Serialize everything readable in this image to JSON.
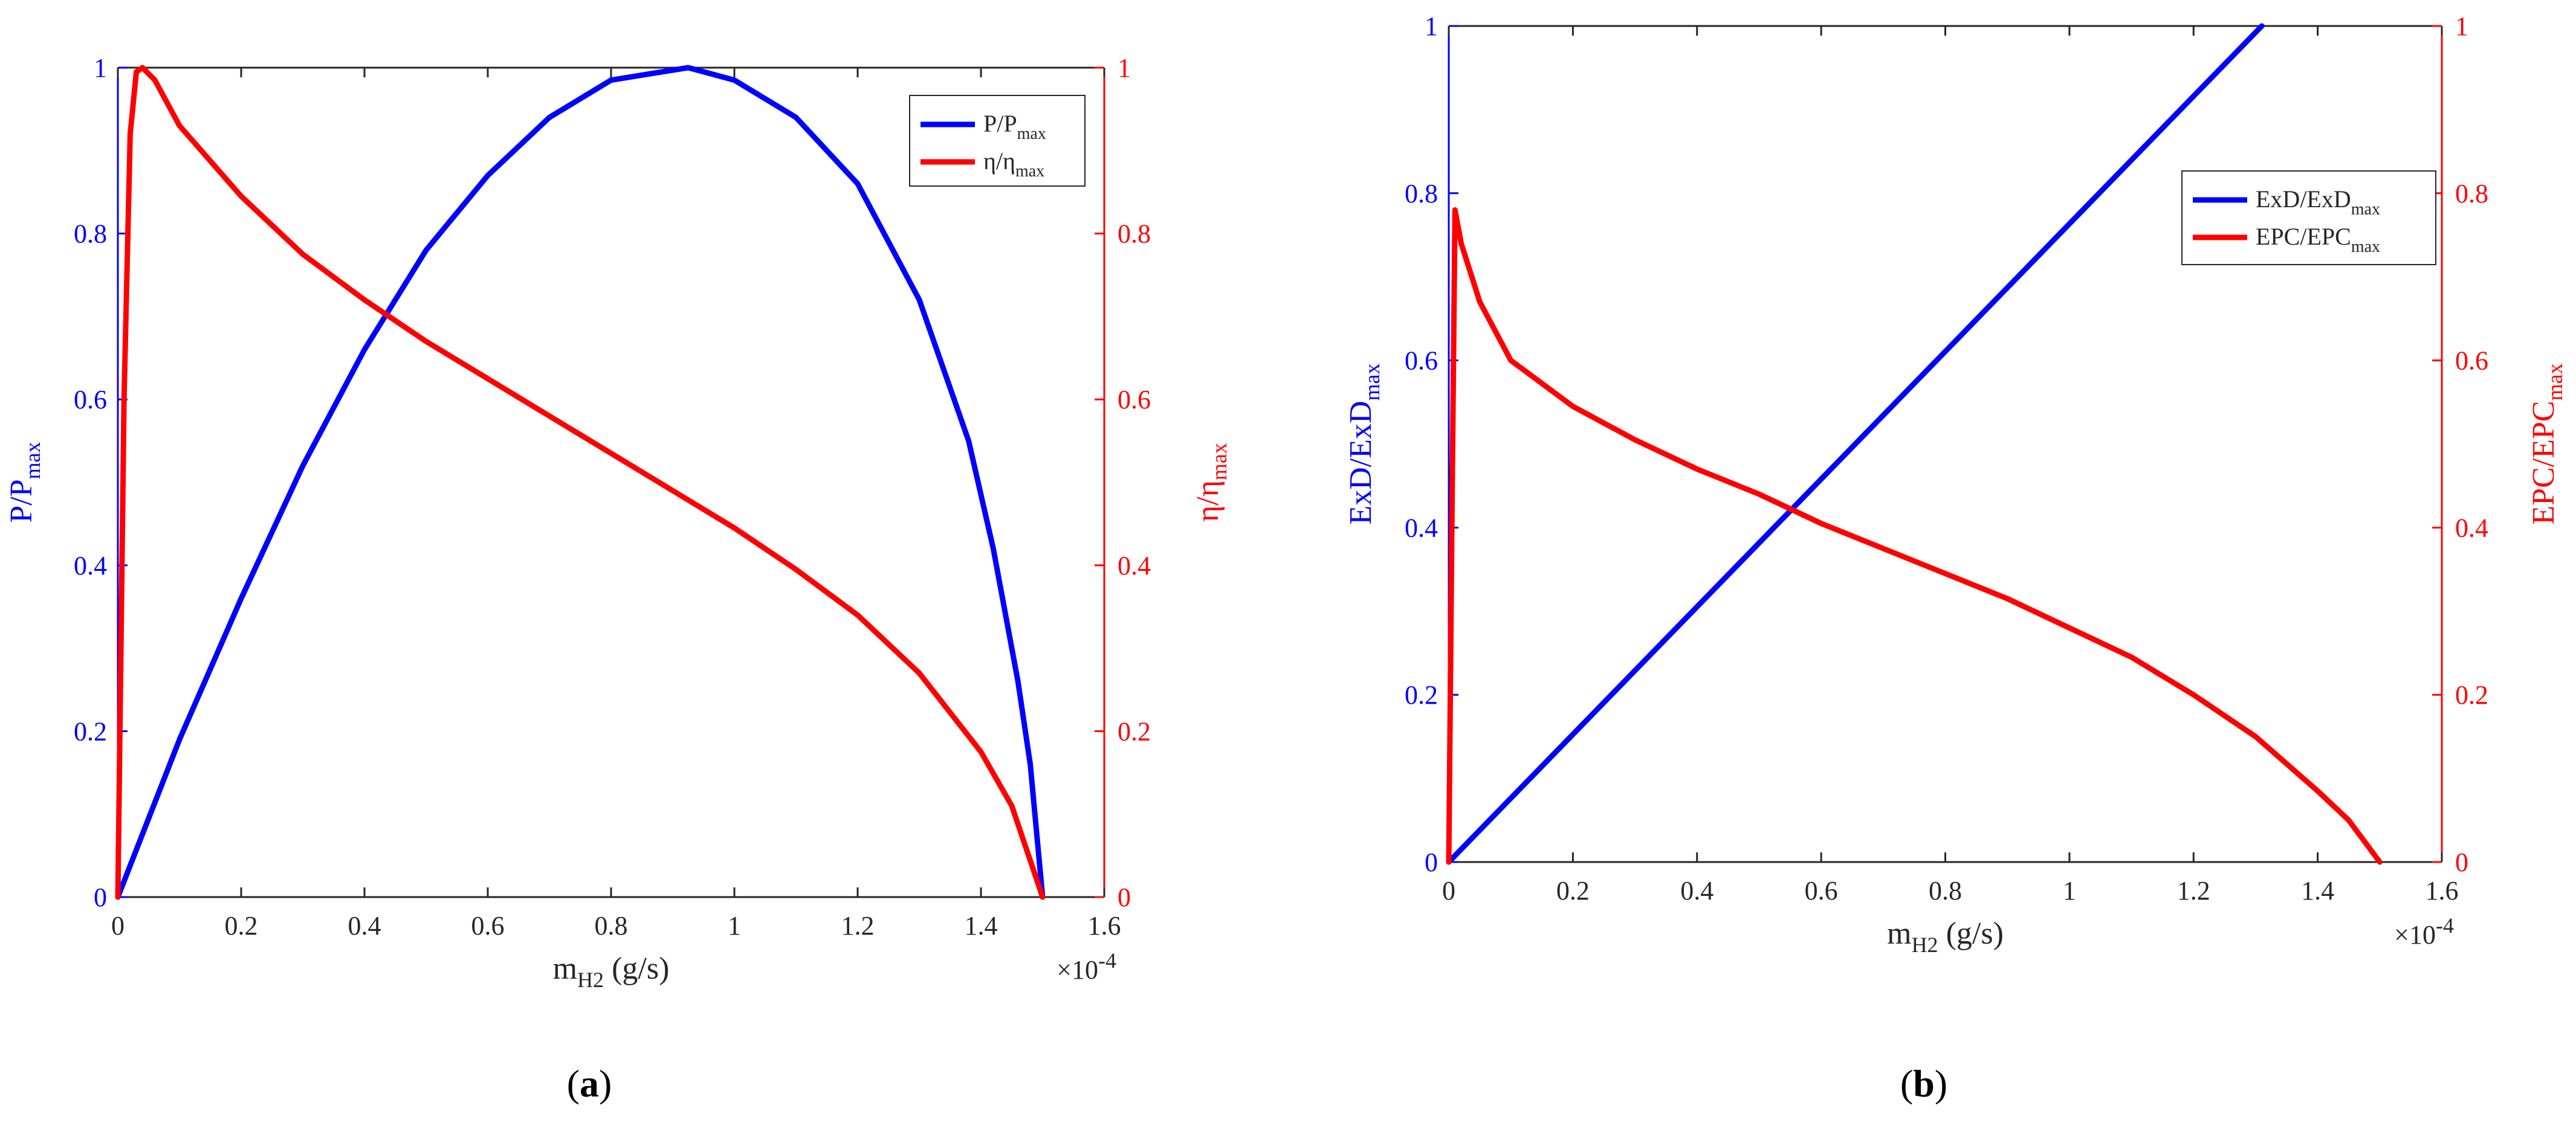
{
  "colors": {
    "blue": "#0000ff",
    "red": "#ff0000",
    "axis": "#262626",
    "background": "#ffffff"
  },
  "chart_data": [
    {
      "panel_label": "a",
      "type": "line",
      "xlabel": {
        "base": "m",
        "sub": "H2",
        "tail": " (g/s)"
      },
      "x_exponent": {
        "prefix": "×10",
        "power": "-4"
      },
      "xlim": [
        0,
        1.6
      ],
      "x_ticks": [
        "0",
        "0.2",
        "0.4",
        "0.6",
        "0.8",
        "1",
        "1.2",
        "1.4",
        "1.6"
      ],
      "ylabel_left": {
        "base": "P/P",
        "sub": "max"
      },
      "ylabel_right": {
        "base": "η/η",
        "sub": "max"
      },
      "ylim_left": [
        0,
        1
      ],
      "ylim_right": [
        0,
        1
      ],
      "y_ticks_left": [
        "0",
        "0.2",
        "0.4",
        "0.6",
        "0.8",
        "1"
      ],
      "y_ticks_right": [
        "0",
        "0.2",
        "0.4",
        "0.6",
        "0.8",
        "1"
      ],
      "legend_position": "top-right",
      "series": [
        {
          "name": "P/P",
          "name_sub": "max",
          "axis": "left",
          "color": "#0000ff",
          "points": [
            [
              0,
              0
            ],
            [
              0.1,
              0.19
            ],
            [
              0.2,
              0.36
            ],
            [
              0.3,
              0.52
            ],
            [
              0.4,
              0.66
            ],
            [
              0.5,
              0.78
            ],
            [
              0.6,
              0.87
            ],
            [
              0.7,
              0.94
            ],
            [
              0.8,
              0.985
            ],
            [
              0.925,
              1.0
            ],
            [
              1.0,
              0.985
            ],
            [
              1.1,
              0.94
            ],
            [
              1.2,
              0.86
            ],
            [
              1.3,
              0.72
            ],
            [
              1.38,
              0.55
            ],
            [
              1.42,
              0.42
            ],
            [
              1.46,
              0.26
            ],
            [
              1.48,
              0.16
            ],
            [
              1.5,
              0
            ]
          ]
        },
        {
          "name": "η/η",
          "name_sub": "max",
          "axis": "right",
          "color": "#ff0000",
          "points": [
            [
              0,
              0
            ],
            [
              0.01,
              0.6
            ],
            [
              0.02,
              0.92
            ],
            [
              0.03,
              0.995
            ],
            [
              0.04,
              1.0
            ],
            [
              0.06,
              0.985
            ],
            [
              0.1,
              0.93
            ],
            [
              0.2,
              0.845
            ],
            [
              0.3,
              0.775
            ],
            [
              0.4,
              0.72
            ],
            [
              0.5,
              0.67
            ],
            [
              0.6,
              0.625
            ],
            [
              0.7,
              0.58
            ],
            [
              0.8,
              0.535
            ],
            [
              0.9,
              0.49
            ],
            [
              1.0,
              0.445
            ],
            [
              1.1,
              0.395
            ],
            [
              1.2,
              0.34
            ],
            [
              1.3,
              0.27
            ],
            [
              1.4,
              0.175
            ],
            [
              1.45,
              0.11
            ],
            [
              1.5,
              0
            ]
          ]
        }
      ]
    },
    {
      "panel_label": "b",
      "type": "line",
      "xlabel": {
        "base": "m",
        "sub": "H2",
        "tail": " (g/s)"
      },
      "x_exponent": {
        "prefix": "×10",
        "power": "-4"
      },
      "xlim": [
        0,
        1.6
      ],
      "x_ticks": [
        "0",
        "0.2",
        "0.4",
        "0.6",
        "0.8",
        "1",
        "1.2",
        "1.4",
        "1.6"
      ],
      "ylabel_left": {
        "base": "ExD/ExD",
        "sub": "max"
      },
      "ylabel_right": {
        "base": "EPC/EPC",
        "sub": "max"
      },
      "ylim_left": [
        0,
        1
      ],
      "ylim_right": [
        0,
        1
      ],
      "y_ticks_left": [
        "0",
        "0.2",
        "0.4",
        "0.6",
        "0.8",
        "1"
      ],
      "y_ticks_right": [
        "0",
        "0.2",
        "0.4",
        "0.6",
        "0.8",
        "1"
      ],
      "legend_position": "right",
      "series": [
        {
          "name": "ExD/ExD",
          "name_sub": "max",
          "axis": "left",
          "color": "#0000ff",
          "points": [
            [
              0,
              0
            ],
            [
              1.31,
              1.0
            ]
          ]
        },
        {
          "name": "EPC/EPC",
          "name_sub": "max",
          "axis": "right",
          "color": "#ff0000",
          "points": [
            [
              0,
              0
            ],
            [
              0.005,
              0.4
            ],
            [
              0.01,
              0.78
            ],
            [
              0.02,
              0.74
            ],
            [
              0.05,
              0.67
            ],
            [
              0.1,
              0.6
            ],
            [
              0.2,
              0.545
            ],
            [
              0.3,
              0.505
            ],
            [
              0.4,
              0.47
            ],
            [
              0.5,
              0.44
            ],
            [
              0.6,
              0.405
            ],
            [
              0.7,
              0.375
            ],
            [
              0.8,
              0.345
            ],
            [
              0.9,
              0.315
            ],
            [
              1.0,
              0.28
            ],
            [
              1.1,
              0.245
            ],
            [
              1.2,
              0.2
            ],
            [
              1.3,
              0.15
            ],
            [
              1.4,
              0.085
            ],
            [
              1.45,
              0.05
            ],
            [
              1.5,
              0
            ]
          ]
        }
      ]
    }
  ]
}
